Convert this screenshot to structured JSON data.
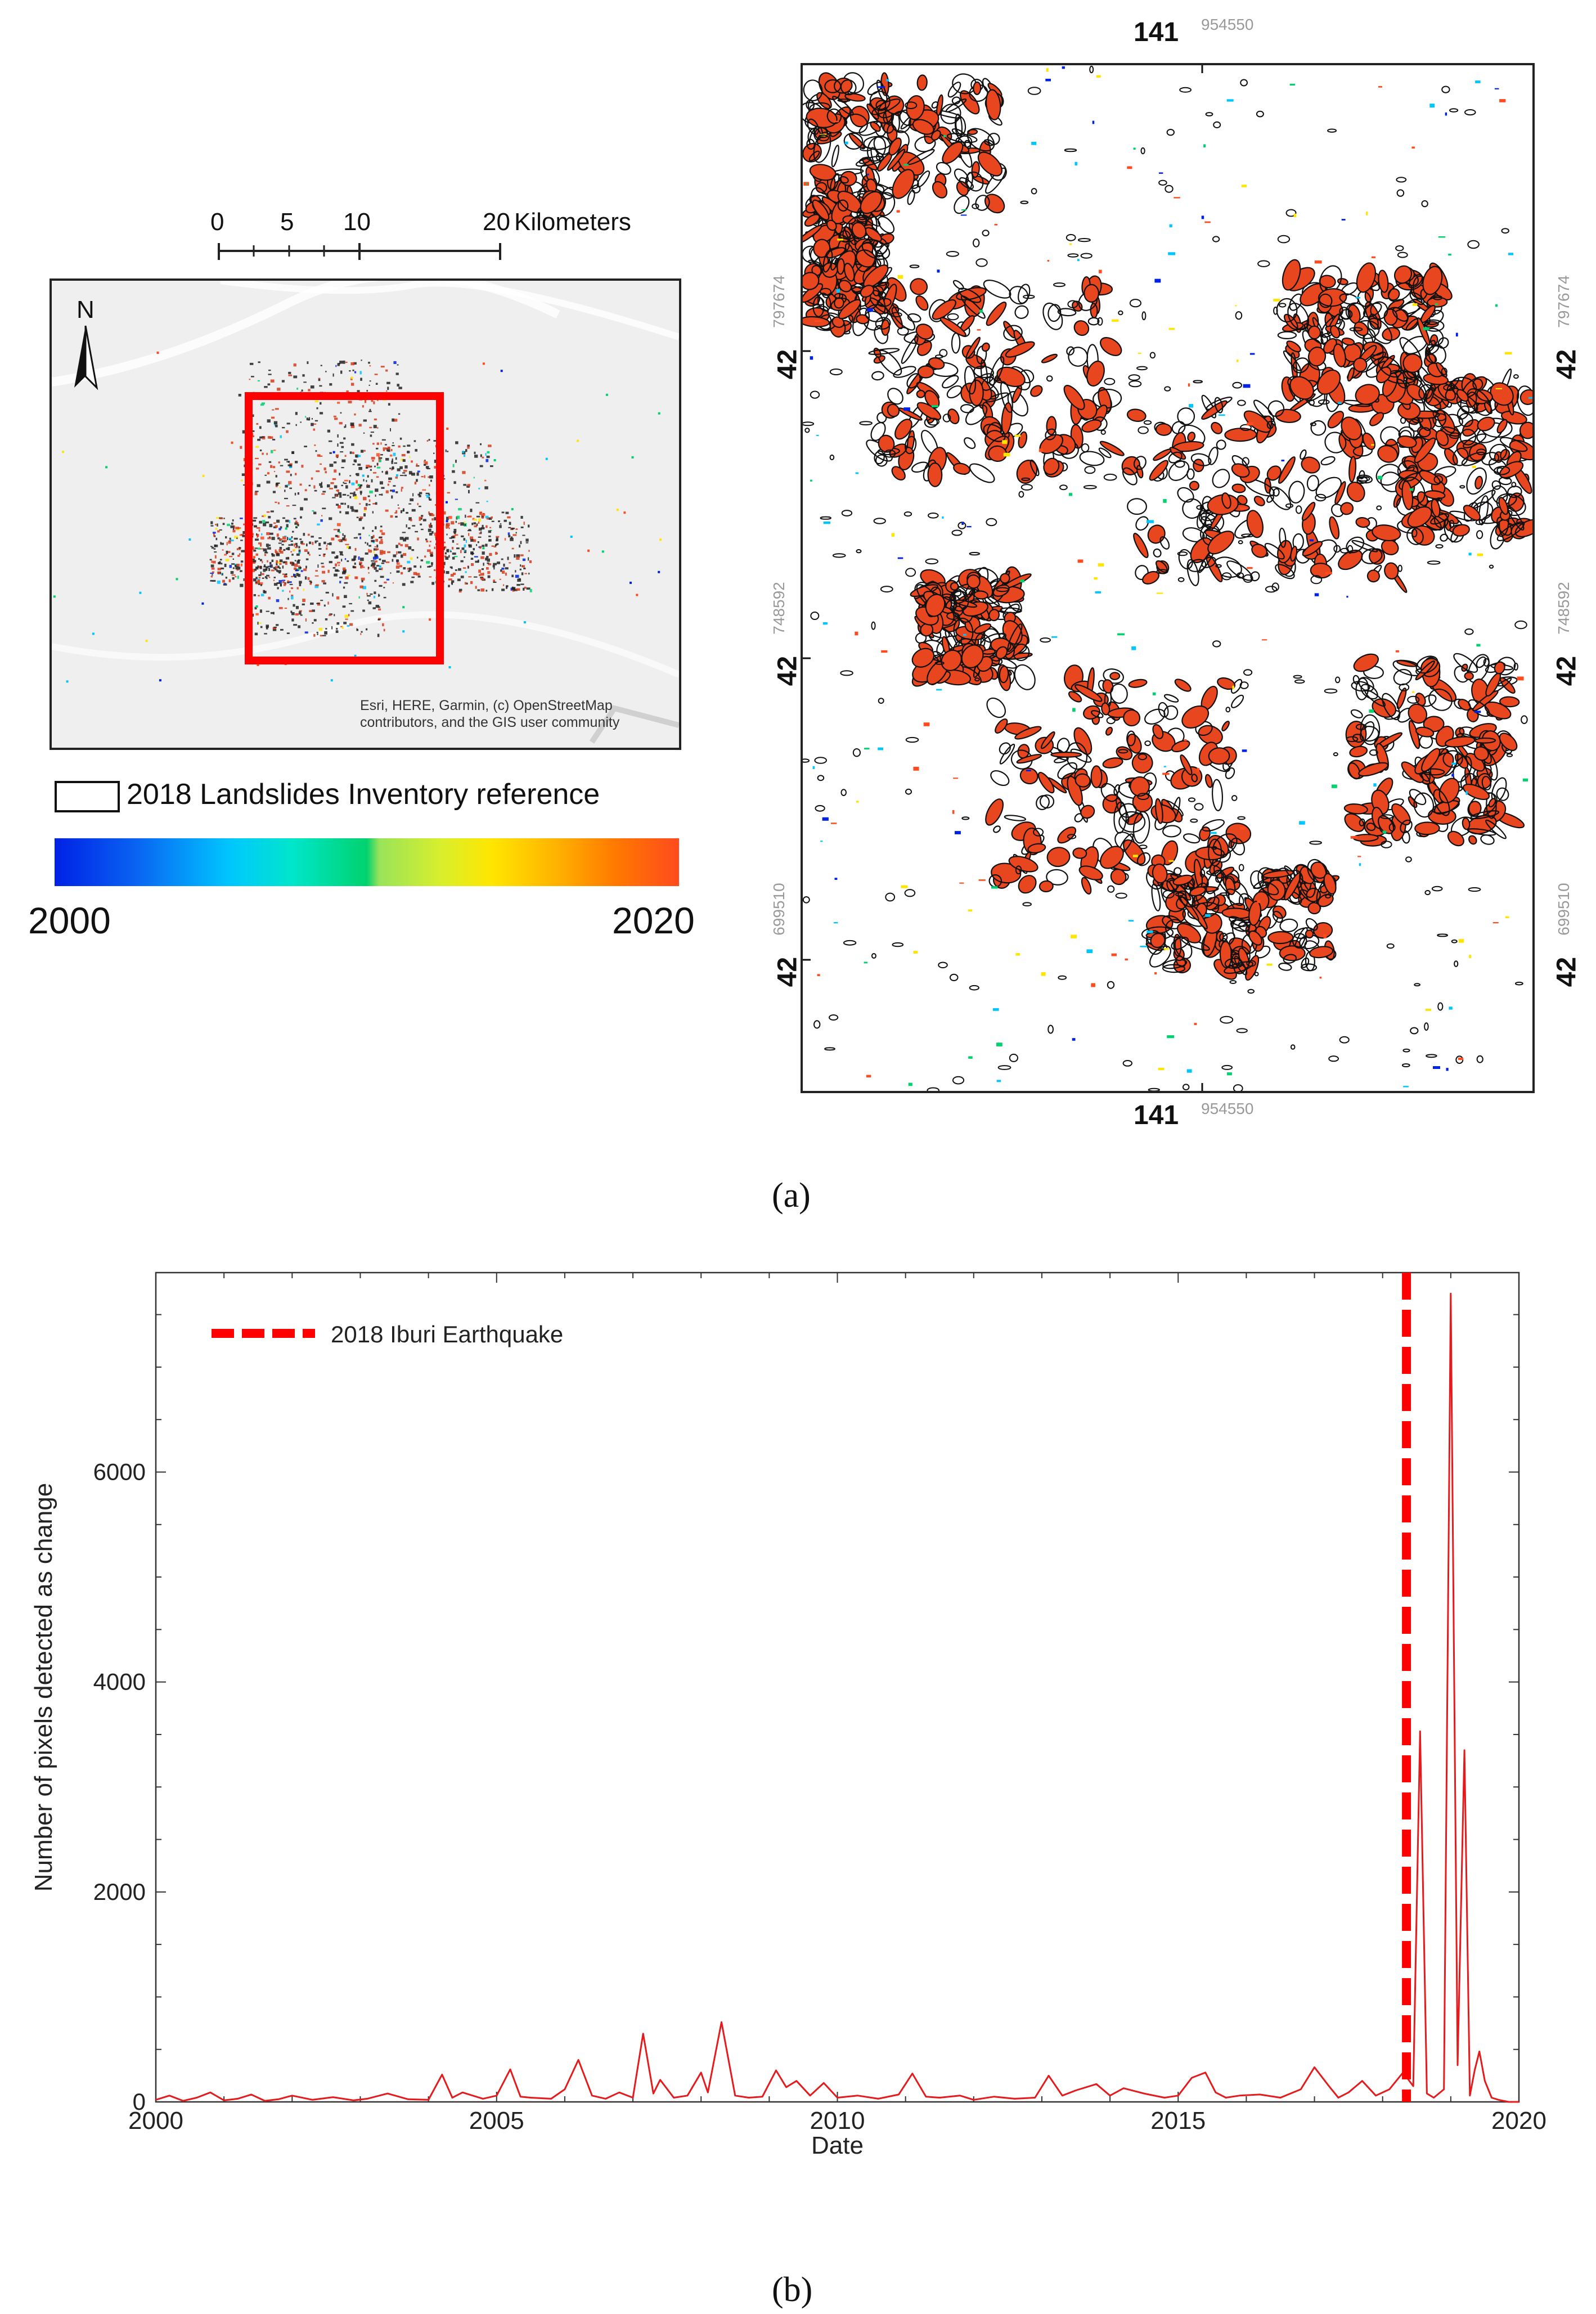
{
  "figure_a": {
    "caption": "(a)",
    "scale_bar": {
      "ticks": [
        "0",
        "5",
        "10",
        "20"
      ],
      "unit": "Kilometers"
    },
    "north_label": "N",
    "attribution_lines": [
      "Esri, HERE, Garmin, (c) OpenStreetMap",
      "contributors, and the GIS user community"
    ],
    "legend_label": "2018 Landslides Inventory reference",
    "colorbar": {
      "min": "2000",
      "max": "2020",
      "colors": [
        "#0021e6",
        "#00c6ff",
        "#00d26e",
        "#ffe600",
        "#ff4b1e"
      ]
    },
    "coordinates": {
      "lon_bold": "141",
      "lon_minor": "954550",
      "lat_bold": "42",
      "lat_rows": [
        "797674",
        "748592",
        "699510"
      ]
    }
  },
  "figure_b": {
    "caption": "(b)"
  },
  "chart_data": {
    "type": "line",
    "title": "",
    "xlabel": "Date",
    "ylabel": "Number of pixels detected as change",
    "xlim": [
      2000,
      2020
    ],
    "ylim": [
      0,
      7900
    ],
    "xticks": [
      2000,
      2005,
      2010,
      2015,
      2020
    ],
    "yticks": [
      0,
      2000,
      4000,
      6000
    ],
    "xtick_labels": [
      "2000",
      "2005",
      "2010",
      "2015",
      "2020"
    ],
    "ytick_labels": [
      "0",
      "2000",
      "4000",
      "6000"
    ],
    "grid": false,
    "legend": {
      "position": "top-left",
      "entries": [
        "2018 Iburi Earthquake"
      ]
    },
    "series": [
      {
        "name": "Number of pixels detected as change",
        "color": "#e41a1c",
        "x": [
          2000.0,
          2000.2,
          2000.4,
          2000.6,
          2000.8,
          2001.0,
          2001.2,
          2001.4,
          2001.6,
          2001.8,
          2002.0,
          2002.3,
          2002.6,
          2002.9,
          2003.1,
          2003.4,
          2003.7,
          2004.0,
          2004.2,
          2004.35,
          2004.5,
          2004.8,
          2005.0,
          2005.2,
          2005.35,
          2005.5,
          2005.8,
          2006.0,
          2006.2,
          2006.4,
          2006.6,
          2006.8,
          2007.0,
          2007.15,
          2007.3,
          2007.4,
          2007.6,
          2007.8,
          2008.0,
          2008.1,
          2008.3,
          2008.5,
          2008.7,
          2008.9,
          2009.1,
          2009.25,
          2009.4,
          2009.6,
          2009.8,
          2010.0,
          2010.3,
          2010.6,
          2010.9,
          2011.1,
          2011.3,
          2011.5,
          2011.8,
          2012.0,
          2012.3,
          2012.6,
          2012.9,
          2013.1,
          2013.3,
          2013.5,
          2013.8,
          2014.0,
          2014.2,
          2014.5,
          2014.8,
          2015.0,
          2015.2,
          2015.4,
          2015.55,
          2015.7,
          2015.9,
          2016.2,
          2016.5,
          2016.8,
          2017.0,
          2017.2,
          2017.35,
          2017.5,
          2017.7,
          2017.9,
          2018.1,
          2018.3,
          2018.45,
          2018.55,
          2018.65,
          2018.75,
          2018.9,
          2019.0,
          2019.1,
          2019.2,
          2019.28,
          2019.35,
          2019.42,
          2019.5,
          2019.6,
          2019.7,
          2019.85,
          2020.0
        ],
        "y": [
          20,
          60,
          10,
          40,
          90,
          15,
          30,
          70,
          10,
          25,
          60,
          20,
          45,
          15,
          30,
          80,
          25,
          20,
          260,
          40,
          90,
          30,
          60,
          310,
          50,
          40,
          30,
          120,
          400,
          60,
          30,
          90,
          40,
          650,
          80,
          210,
          40,
          60,
          280,
          90,
          760,
          60,
          40,
          50,
          300,
          140,
          200,
          60,
          180,
          40,
          60,
          30,
          70,
          270,
          50,
          40,
          60,
          20,
          50,
          30,
          40,
          250,
          60,
          110,
          170,
          60,
          130,
          80,
          40,
          60,
          230,
          280,
          90,
          40,
          60,
          70,
          40,
          120,
          330,
          160,
          40,
          90,
          200,
          60,
          120,
          280,
          150,
          3530,
          80,
          40,
          120,
          7700,
          350,
          3350,
          60,
          300,
          480,
          200,
          40,
          20,
          0,
          0
        ]
      }
    ],
    "annotations": [
      {
        "type": "vline",
        "x": 2018.35,
        "label": "2018 Iburi Earthquake",
        "style": "dashed",
        "color": "#ff0000"
      }
    ]
  }
}
